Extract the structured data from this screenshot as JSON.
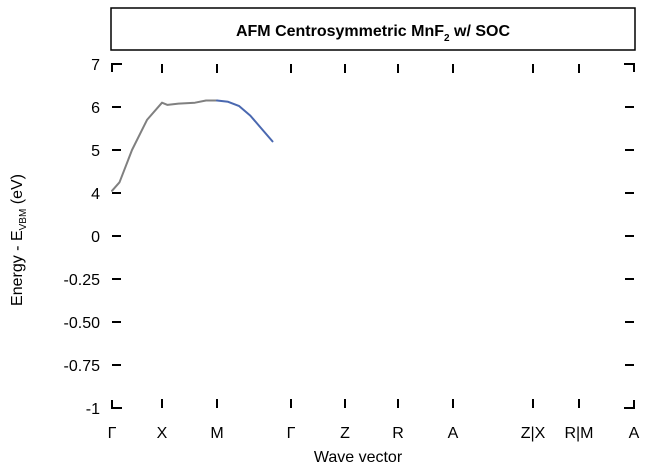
{
  "chart_data": {
    "type": "line",
    "title": "AFM Centrosymmetric MnF",
    "title_subscript": "2",
    "title_suffix": " w/ SOC",
    "xlabel": "Wave vector",
    "ylabel_prefix": "Energy - E",
    "ylabel_subscript": "VBM",
    "ylabel_suffix": " (eV)",
    "x_tick_labels": [
      "Γ",
      "X",
      "M",
      "Γ",
      "Z",
      "R",
      "A",
      "Z|X",
      "R|M",
      "A"
    ],
    "y_tick_labels": [
      "-1",
      "-0.75",
      "-0.50",
      "-0.25",
      "0",
      "4",
      "5",
      "6",
      "7"
    ],
    "y_tick_values": [
      -1,
      -0.75,
      -0.5,
      -0.25,
      0,
      4,
      5,
      6,
      7
    ],
    "grid": false,
    "series": [
      {
        "color": "#808080",
        "x": [
          0,
          0.15,
          0.4,
          0.7,
          1.0,
          1.1,
          1.3,
          1.6,
          1.8,
          2.0
        ],
        "y": [
          4.05,
          4.25,
          5.0,
          5.7,
          6.1,
          6.05,
          6.08,
          6.1,
          6.15,
          6.15
        ]
      },
      {
        "color": "#4a68b0",
        "x": [
          2.0,
          2.15,
          2.3,
          2.45,
          2.6,
          2.75
        ],
        "y": [
          6.15,
          6.12,
          6.02,
          5.8,
          5.5,
          5.2
        ]
      }
    ]
  }
}
